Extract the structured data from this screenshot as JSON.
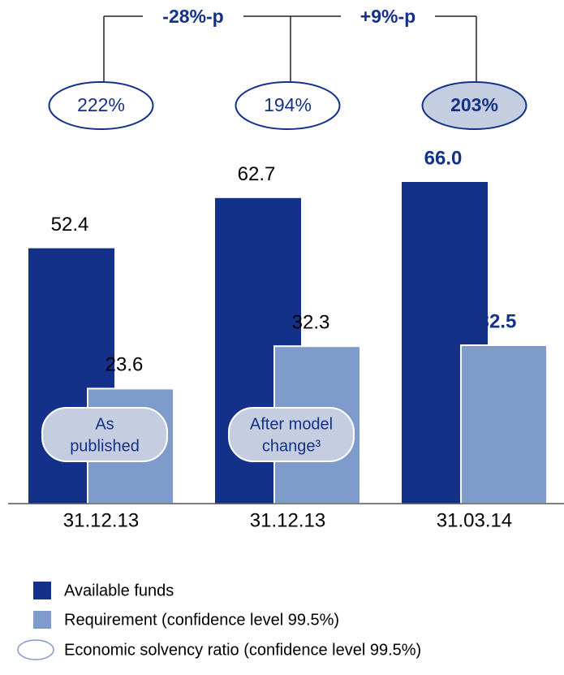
{
  "chart_data": {
    "type": "bar",
    "categories": [
      "31.12.13",
      "31.12.13",
      "31.03.14"
    ],
    "series": [
      {
        "name": "Available funds",
        "color": "#14318a",
        "values": [
          52.4,
          62.7,
          66.0
        ],
        "value_labels": [
          "52.4",
          "62.7",
          "66.0"
        ]
      },
      {
        "name": "Requirement (confidence level 99.5%)",
        "color": "#7f9bcc",
        "values": [
          23.6,
          32.3,
          32.5
        ]
      }
    ],
    "ratios": {
      "name": "Economic solvency ratio (confidence level 99.5%)",
      "values": [
        222,
        194,
        203
      ],
      "value_labels": [
        "222%",
        "194%",
        "203%"
      ]
    },
    "changes": [
      "-28%-p",
      "+9%-p"
    ],
    "badges": [
      [
        "As",
        "published"
      ],
      [
        "After model",
        "change³"
      ]
    ],
    "highlight_index": 2,
    "ylim": [
      0,
      100
    ]
  }
}
